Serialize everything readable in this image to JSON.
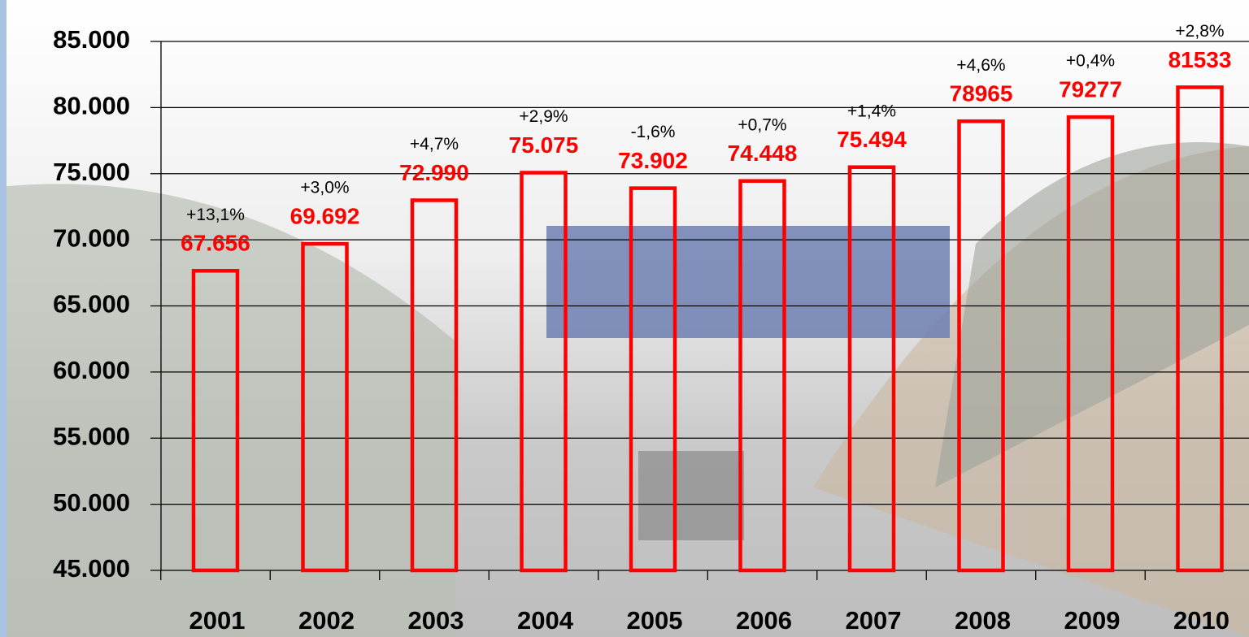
{
  "chart_data": {
    "type": "bar",
    "categories": [
      "2001",
      "2002",
      "2003",
      "2004",
      "2005",
      "2006",
      "2007",
      "2008",
      "2009",
      "2010"
    ],
    "values": [
      67656,
      69692,
      72990,
      75075,
      73902,
      74448,
      75494,
      78965,
      79277,
      81533
    ],
    "value_labels": [
      "67.656",
      "69.692",
      "72.990",
      "75.075",
      "73.902",
      "74.448",
      "75.494",
      "78965",
      "79277",
      "81533"
    ],
    "annotations": [
      "+13,1%",
      "+3,0%",
      "+4,7%",
      "+2,9%",
      "-1,6%",
      "+0,7%",
      "+1,4%",
      "+4,6%",
      "+0,4%",
      "+2,8%"
    ],
    "color": "#ff0000",
    "ylim": [
      45000,
      85000
    ],
    "yticks": [
      {
        "value": 45000,
        "label": "45.000"
      },
      {
        "value": 50000,
        "label": "50.000"
      },
      {
        "value": 55000,
        "label": "55.000"
      },
      {
        "value": 60000,
        "label": "60.000"
      },
      {
        "value": 65000,
        "label": "65.000"
      },
      {
        "value": 70000,
        "label": "70.000"
      },
      {
        "value": 75000,
        "label": "75.000"
      },
      {
        "value": 80000,
        "label": "80.000"
      },
      {
        "value": 85000,
        "label": "85.000"
      }
    ],
    "grid": true
  }
}
